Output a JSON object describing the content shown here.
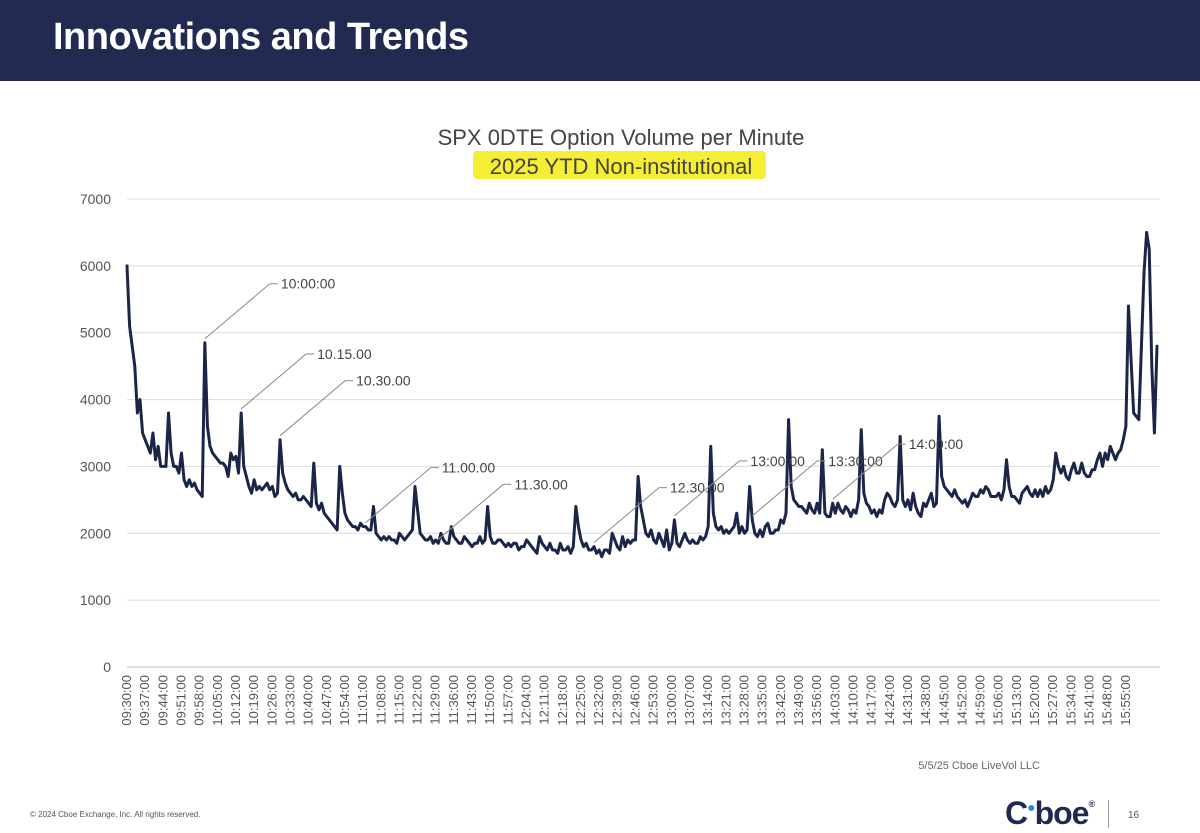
{
  "header": {
    "title": "Innovations and Trends"
  },
  "chart_data": {
    "type": "line",
    "title": "SPX 0DTE Option Volume per Minute",
    "subtitle": "2025 YTD Non-institutional",
    "highlight_color": "#f5ec1e",
    "line_color": "#1b2548",
    "ylim": [
      0,
      7000
    ],
    "yticks": [
      "7000",
      "6000",
      "5000",
      "4000",
      "3000",
      "2000",
      "1000",
      "0"
    ],
    "ytick_values": [
      7000,
      6000,
      5000,
      4000,
      3000,
      2000,
      1000,
      0
    ],
    "x_start": "09:30:00",
    "x_end": "15:59:00",
    "x_interval_minutes": 1,
    "xtick_labels": [
      "09:30:00",
      "09:37:00",
      "09:44:00",
      "09:51:00",
      "09:58:00",
      "10:05:00",
      "10:12:00",
      "10:19:00",
      "10:26:00",
      "10:33:00",
      "10:40:00",
      "10:47:00",
      "10:54:00",
      "11:01:00",
      "11:08:00",
      "11:15:00",
      "11:22:00",
      "11:29:00",
      "11:36:00",
      "11:43:00",
      "11:50:00",
      "11:57:00",
      "12:04:00",
      "12:11:00",
      "12:18:00",
      "12:25:00",
      "12:32:00",
      "12:39:00",
      "12:46:00",
      "12:53:00",
      "13:00:00",
      "13:07:00",
      "13:14:00",
      "13:21:00",
      "13:28:00",
      "13:35:00",
      "13:42:00",
      "13:49:00",
      "13:56:00",
      "14:03:00",
      "14:10:00",
      "14:17:00",
      "14:24:00",
      "14:31:00",
      "14:38:00",
      "14:45:00",
      "14:52:00",
      "14:59:00",
      "15:06:00",
      "15:13:00",
      "15:20:00",
      "15:27:00",
      "15:34:00",
      "15:41:00",
      "15:48:00",
      "15:55:00"
    ],
    "series": [
      {
        "values": [
          6000,
          5100,
          4800,
          4500,
          3800,
          4000,
          3500,
          3400,
          3300,
          3200,
          3500,
          3100,
          3300,
          3000,
          3000,
          3000,
          3800,
          3200,
          3000,
          3000,
          2900,
          3200,
          2800,
          2700,
          2800,
          2700,
          2750,
          2650,
          2600,
          2550,
          4850,
          3600,
          3300,
          3200,
          3150,
          3100,
          3050,
          3050,
          3000,
          2850,
          3200,
          3100,
          3150,
          2900,
          3800,
          3000,
          2850,
          2700,
          2600,
          2800,
          2650,
          2700,
          2650,
          2700,
          2750,
          2650,
          2700,
          2550,
          2600,
          3400,
          2900,
          2750,
          2650,
          2600,
          2550,
          2600,
          2500,
          2500,
          2550,
          2500,
          2450,
          2400,
          3050,
          2450,
          2350,
          2450,
          2300,
          2250,
          2200,
          2150,
          2100,
          2050,
          3000,
          2600,
          2300,
          2200,
          2150,
          2100,
          2100,
          2050,
          2150,
          2100,
          2100,
          2050,
          2050,
          2400,
          2000,
          1950,
          1900,
          1950,
          1900,
          1950,
          1900,
          1900,
          1850,
          2000,
          1950,
          1900,
          1950,
          2000,
          2050,
          2700,
          2350,
          2000,
          1950,
          1900,
          1900,
          1950,
          1850,
          1900,
          1850,
          2000,
          1900,
          1850,
          1850,
          2100,
          1950,
          1900,
          1850,
          1850,
          1950,
          1900,
          1850,
          1800,
          1850,
          1850,
          1950,
          1850,
          1900,
          2400,
          1950,
          1850,
          1850,
          1900,
          1900,
          1850,
          1800,
          1850,
          1800,
          1850,
          1850,
          1750,
          1800,
          1800,
          1900,
          1850,
          1800,
          1750,
          1700,
          1950,
          1850,
          1800,
          1750,
          1850,
          1750,
          1750,
          1700,
          1850,
          1750,
          1750,
          1800,
          1700,
          1800,
          2400,
          2100,
          1900,
          1800,
          1850,
          1750,
          1750,
          1800,
          1700,
          1750,
          1650,
          1750,
          1750,
          1700,
          2000,
          1900,
          1800,
          1750,
          1950,
          1800,
          1900,
          1850,
          1900,
          1900,
          2850,
          2400,
          2200,
          2000,
          1950,
          2050,
          1900,
          1850,
          2000,
          1900,
          1800,
          2050,
          1750,
          1850,
          2200,
          1850,
          1800,
          1900,
          2000,
          1900,
          1850,
          1900,
          1850,
          1850,
          1950,
          1900,
          1950,
          2100,
          3300,
          2300,
          2100,
          2050,
          2100,
          2000,
          2050,
          2000,
          2050,
          2100,
          2300,
          2000,
          2100,
          2000,
          2050,
          2700,
          2200,
          2000,
          1950,
          2050,
          1950,
          2100,
          2150,
          2000,
          2000,
          2050,
          2050,
          2200,
          2150,
          2300,
          3700,
          2700,
          2500,
          2450,
          2400,
          2400,
          2350,
          2300,
          2450,
          2350,
          2300,
          2450,
          2300,
          3250,
          2300,
          2250,
          2250,
          2450,
          2300,
          2450,
          2350,
          2300,
          2400,
          2350,
          2250,
          2350,
          2300,
          2500,
          3550,
          2600,
          2450,
          2400,
          2300,
          2350,
          2250,
          2350,
          2300,
          2500,
          2600,
          2550,
          2450,
          2400,
          2500,
          3450,
          2500,
          2400,
          2500,
          2350,
          2600,
          2400,
          2300,
          2250,
          2450,
          2400,
          2500,
          2600,
          2400,
          2450,
          3750,
          2850,
          2700,
          2650,
          2600,
          2550,
          2650,
          2550,
          2500,
          2450,
          2500,
          2400,
          2500,
          2600,
          2550,
          2550,
          2650,
          2600,
          2700,
          2650,
          2550,
          2550,
          2550,
          2600,
          2500,
          2650,
          3100,
          2700,
          2550,
          2550,
          2500,
          2450,
          2600,
          2650,
          2700,
          2600,
          2550,
          2650,
          2550,
          2650,
          2550,
          2700,
          2600,
          2650,
          2800,
          3200,
          3000,
          2900,
          3000,
          2850,
          2800,
          2950,
          3050,
          2900,
          2900,
          3050,
          2900,
          2850,
          2850,
          2950,
          2950,
          3100,
          3200,
          3000,
          3200,
          3100,
          3300,
          3200,
          3100,
          3200,
          3250,
          3400,
          3600,
          5400,
          4600,
          3800,
          3750,
          3700,
          4800,
          5900,
          6500,
          6250,
          4500,
          3500,
          4800
        ]
      }
    ],
    "annotations": [
      {
        "label": "10:00:00",
        "x": "10:00:00"
      },
      {
        "label": "10.15.00",
        "x": "10:14:00"
      },
      {
        "label": "10.30.00",
        "x": "10:29:00"
      },
      {
        "label": "11.00.00",
        "x": "11:02:00"
      },
      {
        "label": "11.30.00",
        "x": "11:30:00"
      },
      {
        "label": "12.30.00",
        "x": "12:30:00"
      },
      {
        "label": "13:00:00",
        "x": "13:01:00"
      },
      {
        "label": "13:30:00",
        "x": "13:31:00"
      },
      {
        "label": "14:00:00",
        "x": "14:02:00"
      }
    ],
    "grid": true,
    "source": "5/5/25 Cboe LiveVol LLC"
  },
  "footer": {
    "copyright": "© 2024 Cboe Exchange, Inc. All rights reserved.",
    "logo_c": "C",
    "logo_rest": "boe",
    "logo_reg": "®",
    "page_number": "16"
  }
}
